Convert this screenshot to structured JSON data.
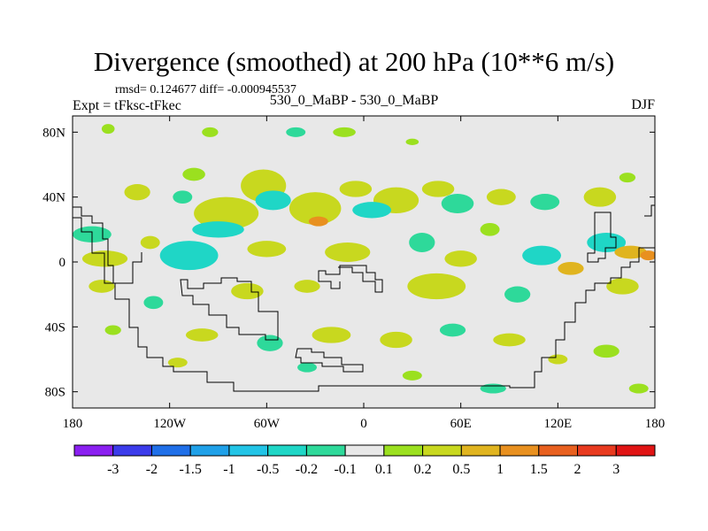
{
  "title": "Divergence (smoothed) at 200 hPa (10**6 m/s)",
  "stats": "rmsd= 0.124677  diff= -0.000945537",
  "experiment": "Expt = tFksc-tFkec",
  "subtitle": "530_0_MaBP - 530_0_MaBP",
  "season": "DJF",
  "chart_data": {
    "type": "heatmap",
    "projection": "cylindrical equidistant",
    "x_range": [
      -180,
      180
    ],
    "y_range": [
      -90,
      90
    ],
    "x_ticks": [
      {
        "value": -180,
        "label": "180"
      },
      {
        "value": -120,
        "label": "120W"
      },
      {
        "value": -60,
        "label": "60W"
      },
      {
        "value": 0,
        "label": "0"
      },
      {
        "value": 60,
        "label": "60E"
      },
      {
        "value": 120,
        "label": "120E"
      },
      {
        "value": 180,
        "label": "180"
      }
    ],
    "y_ticks": [
      {
        "value": 80,
        "label": "80N"
      },
      {
        "value": 40,
        "label": "40N"
      },
      {
        "value": 0,
        "label": "0"
      },
      {
        "value": -40,
        "label": "40S"
      },
      {
        "value": -80,
        "label": "80S"
      }
    ],
    "colorbar": {
      "levels": [
        "-3",
        "-2",
        "-1.5",
        "-1",
        "-0.5",
        "-0.2",
        "-0.1",
        "0.1",
        "0.2",
        "0.5",
        "1",
        "1.5",
        "2",
        "3"
      ],
      "colors": [
        "#8a1ff0",
        "#3b3bea",
        "#1f6fe8",
        "#1fa0e8",
        "#22c4e6",
        "#1fd6c6",
        "#2ed99a",
        "#e8e8e8",
        "#9be01f",
        "#c8d81f",
        "#e0b41f",
        "#e8901f",
        "#e8601f",
        "#e83a1f",
        "#e01414"
      ]
    },
    "fields": [
      {
        "lon": -158,
        "lat": 82,
        "rx": 4,
        "ry": 3,
        "value": 0.15
      },
      {
        "lon": -95,
        "lat": 80,
        "rx": 5,
        "ry": 3,
        "value": 0.15
      },
      {
        "lon": -42,
        "lat": 80,
        "rx": 6,
        "ry": 3,
        "value": -0.15
      },
      {
        "lon": -12,
        "lat": 80,
        "rx": 7,
        "ry": 3,
        "value": 0.15
      },
      {
        "lon": 30,
        "lat": 74,
        "rx": 4,
        "ry": 2,
        "value": 0.15
      },
      {
        "lon": -105,
        "lat": 54,
        "rx": 7,
        "ry": 4,
        "value": 0.15
      },
      {
        "lon": -62,
        "lat": 47,
        "rx": 14,
        "ry": 10,
        "value": 0.3
      },
      {
        "lon": -56,
        "lat": 38,
        "rx": 11,
        "ry": 6,
        "value": -0.3
      },
      {
        "lon": -140,
        "lat": 43,
        "rx": 8,
        "ry": 5,
        "value": 0.2
      },
      {
        "lon": -112,
        "lat": 40,
        "rx": 6,
        "ry": 4,
        "value": -0.15
      },
      {
        "lon": -85,
        "lat": 30,
        "rx": 20,
        "ry": 10,
        "value": 0.35
      },
      {
        "lon": -90,
        "lat": 20,
        "rx": 16,
        "ry": 5,
        "value": -0.3
      },
      {
        "lon": -30,
        "lat": 33,
        "rx": 16,
        "ry": 10,
        "value": 0.3
      },
      {
        "lon": -28,
        "lat": 25,
        "rx": 6,
        "ry": 3,
        "value": 1.1
      },
      {
        "lon": -5,
        "lat": 45,
        "rx": 10,
        "ry": 5,
        "value": 0.25
      },
      {
        "lon": 20,
        "lat": 38,
        "rx": 14,
        "ry": 8,
        "value": 0.4
      },
      {
        "lon": 5,
        "lat": 32,
        "rx": 12,
        "ry": 5,
        "value": -0.3
      },
      {
        "lon": 46,
        "lat": 45,
        "rx": 10,
        "ry": 5,
        "value": 0.2
      },
      {
        "lon": 58,
        "lat": 36,
        "rx": 10,
        "ry": 6,
        "value": -0.2
      },
      {
        "lon": 85,
        "lat": 40,
        "rx": 9,
        "ry": 5,
        "value": 0.25
      },
      {
        "lon": 112,
        "lat": 37,
        "rx": 9,
        "ry": 5,
        "value": -0.2
      },
      {
        "lon": 146,
        "lat": 40,
        "rx": 10,
        "ry": 6,
        "value": 0.3
      },
      {
        "lon": 163,
        "lat": 52,
        "rx": 5,
        "ry": 3,
        "value": 0.15
      },
      {
        "lon": -168,
        "lat": 17,
        "rx": 12,
        "ry": 5,
        "value": -0.2
      },
      {
        "lon": -160,
        "lat": 2,
        "rx": 14,
        "ry": 5,
        "value": 0.3
      },
      {
        "lon": -132,
        "lat": 12,
        "rx": 6,
        "ry": 4,
        "value": 0.2
      },
      {
        "lon": -108,
        "lat": 4,
        "rx": 18,
        "ry": 9,
        "value": -0.35
      },
      {
        "lon": -60,
        "lat": 8,
        "rx": 12,
        "ry": 5,
        "value": 0.3
      },
      {
        "lon": -10,
        "lat": 6,
        "rx": 14,
        "ry": 6,
        "value": 0.25
      },
      {
        "lon": 36,
        "lat": 12,
        "rx": 8,
        "ry": 6,
        "value": -0.2
      },
      {
        "lon": 60,
        "lat": 2,
        "rx": 10,
        "ry": 5,
        "value": 0.3
      },
      {
        "lon": 78,
        "lat": 20,
        "rx": 6,
        "ry": 4,
        "value": 0.15
      },
      {
        "lon": 110,
        "lat": 4,
        "rx": 12,
        "ry": 6,
        "value": -0.3
      },
      {
        "lon": 128,
        "lat": -4,
        "rx": 8,
        "ry": 4,
        "value": 0.7
      },
      {
        "lon": 150,
        "lat": 12,
        "rx": 12,
        "ry": 6,
        "value": -0.3
      },
      {
        "lon": 165,
        "lat": 6,
        "rx": 10,
        "ry": 4,
        "value": 0.8
      },
      {
        "lon": 176,
        "lat": 4,
        "rx": 5,
        "ry": 3,
        "value": 1.2
      },
      {
        "lon": -162,
        "lat": -15,
        "rx": 8,
        "ry": 4,
        "value": 0.2
      },
      {
        "lon": -130,
        "lat": -25,
        "rx": 6,
        "ry": 4,
        "value": -0.15
      },
      {
        "lon": -72,
        "lat": -18,
        "rx": 10,
        "ry": 5,
        "value": 0.3
      },
      {
        "lon": -35,
        "lat": -15,
        "rx": 8,
        "ry": 4,
        "value": 0.2
      },
      {
        "lon": 45,
        "lat": -15,
        "rx": 18,
        "ry": 8,
        "value": 0.3
      },
      {
        "lon": 95,
        "lat": -20,
        "rx": 8,
        "ry": 5,
        "value": -0.2
      },
      {
        "lon": 160,
        "lat": -15,
        "rx": 10,
        "ry": 5,
        "value": 0.2
      },
      {
        "lon": -155,
        "lat": -42,
        "rx": 5,
        "ry": 3,
        "value": 0.15
      },
      {
        "lon": -100,
        "lat": -45,
        "rx": 10,
        "ry": 4,
        "value": 0.2
      },
      {
        "lon": -58,
        "lat": -50,
        "rx": 8,
        "ry": 5,
        "value": -0.2
      },
      {
        "lon": -20,
        "lat": -45,
        "rx": 12,
        "ry": 5,
        "value": 0.25
      },
      {
        "lon": 20,
        "lat": -48,
        "rx": 10,
        "ry": 5,
        "value": 0.2
      },
      {
        "lon": 55,
        "lat": -42,
        "rx": 8,
        "ry": 4,
        "value": -0.15
      },
      {
        "lon": 90,
        "lat": -48,
        "rx": 10,
        "ry": 4,
        "value": 0.2
      },
      {
        "lon": 120,
        "lat": -60,
        "rx": 6,
        "ry": 3,
        "value": 0.2
      },
      {
        "lon": 150,
        "lat": -55,
        "rx": 8,
        "ry": 4,
        "value": 0.15
      },
      {
        "lon": -115,
        "lat": -62,
        "rx": 6,
        "ry": 3,
        "value": 0.2
      },
      {
        "lon": -35,
        "lat": -65,
        "rx": 6,
        "ry": 3,
        "value": -0.15
      },
      {
        "lon": 30,
        "lat": -70,
        "rx": 6,
        "ry": 3,
        "value": 0.15
      },
      {
        "lon": 80,
        "lat": -78,
        "rx": 8,
        "ry": 3,
        "value": -0.15
      },
      {
        "lon": 170,
        "lat": -78,
        "rx": 6,
        "ry": 3,
        "value": 0.15
      }
    ]
  }
}
